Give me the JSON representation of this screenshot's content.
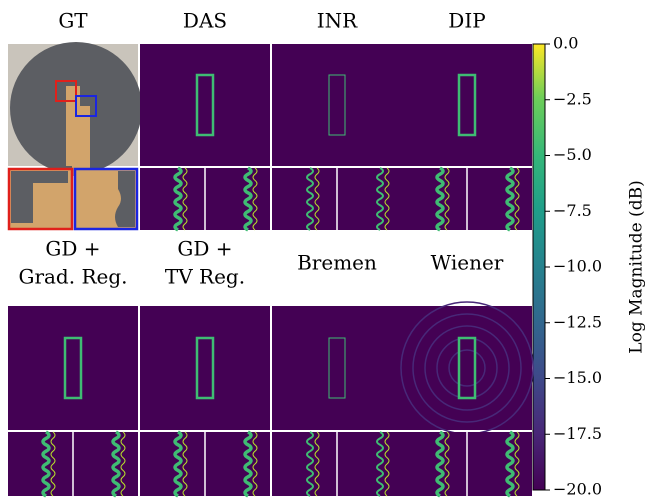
{
  "chart_data": {
    "type": "image-grid",
    "panels": [
      {
        "title": [
          "GT"
        ]
      },
      {
        "title": [
          "DAS"
        ]
      },
      {
        "title": [
          "INR"
        ]
      },
      {
        "title": [
          "DIP"
        ]
      },
      {
        "title": [
          "GD +",
          "Grad. Reg."
        ]
      },
      {
        "title": [
          "GD +",
          "TV Reg."
        ]
      },
      {
        "title": [
          "Bremen"
        ]
      },
      {
        "title": [
          "Wiener"
        ]
      }
    ],
    "colorbar_label": "Log Magnitude (dB)",
    "ylim": [
      -20,
      0
    ],
    "yticks": [
      {
        "value": 0,
        "label": "0.0"
      },
      {
        "value": -2.5,
        "label": "−2.5"
      },
      {
        "value": -5,
        "label": "−5.0"
      },
      {
        "value": -7.5,
        "label": "−7.5"
      },
      {
        "value": -10,
        "label": "−10.0"
      },
      {
        "value": -12.5,
        "label": "−12.5"
      },
      {
        "value": -15,
        "label": "−15.0"
      },
      {
        "value": -17.5,
        "label": "−17.5"
      },
      {
        "value": -20,
        "label": "−20.0"
      }
    ]
  }
}
